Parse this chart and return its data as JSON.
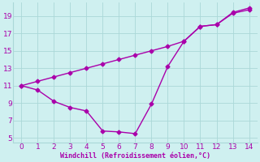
{
  "xlabel": "Windchill (Refroidissement éolien,°C)",
  "background_color": "#cff0f0",
  "grid_color": "#aad8d8",
  "line_color": "#aa00aa",
  "xlim": [
    -0.5,
    14.5
  ],
  "ylim": [
    4.5,
    20.5
  ],
  "xticks": [
    0,
    1,
    2,
    3,
    4,
    5,
    6,
    7,
    8,
    9,
    10,
    11,
    12,
    13,
    14
  ],
  "yticks": [
    5,
    7,
    9,
    11,
    13,
    15,
    17,
    19
  ],
  "series1_x": [
    0,
    1,
    2,
    3,
    4,
    5,
    6,
    7,
    8,
    9,
    10,
    11,
    12,
    13,
    14
  ],
  "series1_y": [
    11.0,
    10.5,
    9.2,
    8.5,
    8.1,
    5.8,
    5.7,
    5.5,
    8.9,
    13.2,
    16.1,
    17.8,
    18.0,
    19.3,
    19.7
  ],
  "series2_x": [
    0,
    1,
    2,
    3,
    4,
    5,
    6,
    7,
    8,
    9,
    10,
    11,
    12,
    13,
    14
  ],
  "series2_y": [
    11.0,
    11.5,
    12.0,
    12.5,
    13.0,
    13.5,
    14.0,
    14.5,
    15.0,
    15.5,
    16.1,
    17.8,
    18.0,
    19.4,
    19.9
  ],
  "marker_size": 2.5,
  "line_width": 1.0,
  "font_color": "#aa00aa",
  "tick_fontsize": 6.5,
  "xlabel_fontsize": 6.0
}
